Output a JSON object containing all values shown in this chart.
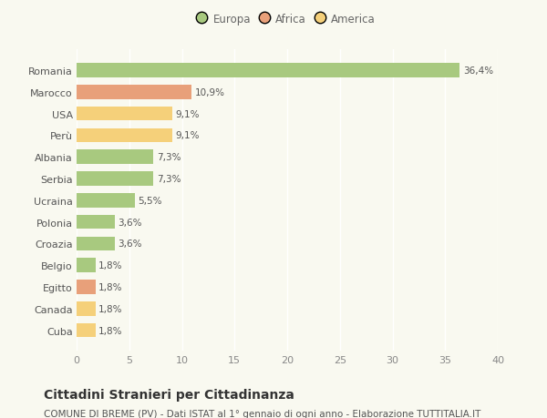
{
  "countries": [
    "Romania",
    "Marocco",
    "USA",
    "Perù",
    "Albania",
    "Serbia",
    "Ucraina",
    "Polonia",
    "Croazia",
    "Belgio",
    "Egitto",
    "Canada",
    "Cuba"
  ],
  "values": [
    36.4,
    10.9,
    9.1,
    9.1,
    7.3,
    7.3,
    5.5,
    3.6,
    3.6,
    1.8,
    1.8,
    1.8,
    1.8
  ],
  "labels": [
    "36,4%",
    "10,9%",
    "9,1%",
    "9,1%",
    "7,3%",
    "7,3%",
    "5,5%",
    "3,6%",
    "3,6%",
    "1,8%",
    "1,8%",
    "1,8%",
    "1,8%"
  ],
  "colors": [
    "#a8c97f",
    "#e8a07a",
    "#f5d07a",
    "#f5d07a",
    "#a8c97f",
    "#a8c97f",
    "#a8c97f",
    "#a8c97f",
    "#a8c97f",
    "#a8c97f",
    "#e8a07a",
    "#f5d07a",
    "#f5d07a"
  ],
  "legend": [
    {
      "label": "Europa",
      "color": "#a8c97f"
    },
    {
      "label": "Africa",
      "color": "#e8a07a"
    },
    {
      "label": "America",
      "color": "#f5d07a"
    }
  ],
  "xlim": [
    0,
    40
  ],
  "xticks": [
    0,
    5,
    10,
    15,
    20,
    25,
    30,
    35,
    40
  ],
  "title": "Cittadini Stranieri per Cittadinanza",
  "subtitle": "COMUNE DI BREME (PV) - Dati ISTAT al 1° gennaio di ogni anno - Elaborazione TUTTITALIA.IT",
  "background_color": "#f9f9f0",
  "grid_color": "#ffffff",
  "bar_height": 0.65,
  "title_fontsize": 10,
  "subtitle_fontsize": 7.5,
  "tick_fontsize": 8,
  "label_fontsize": 7.5
}
